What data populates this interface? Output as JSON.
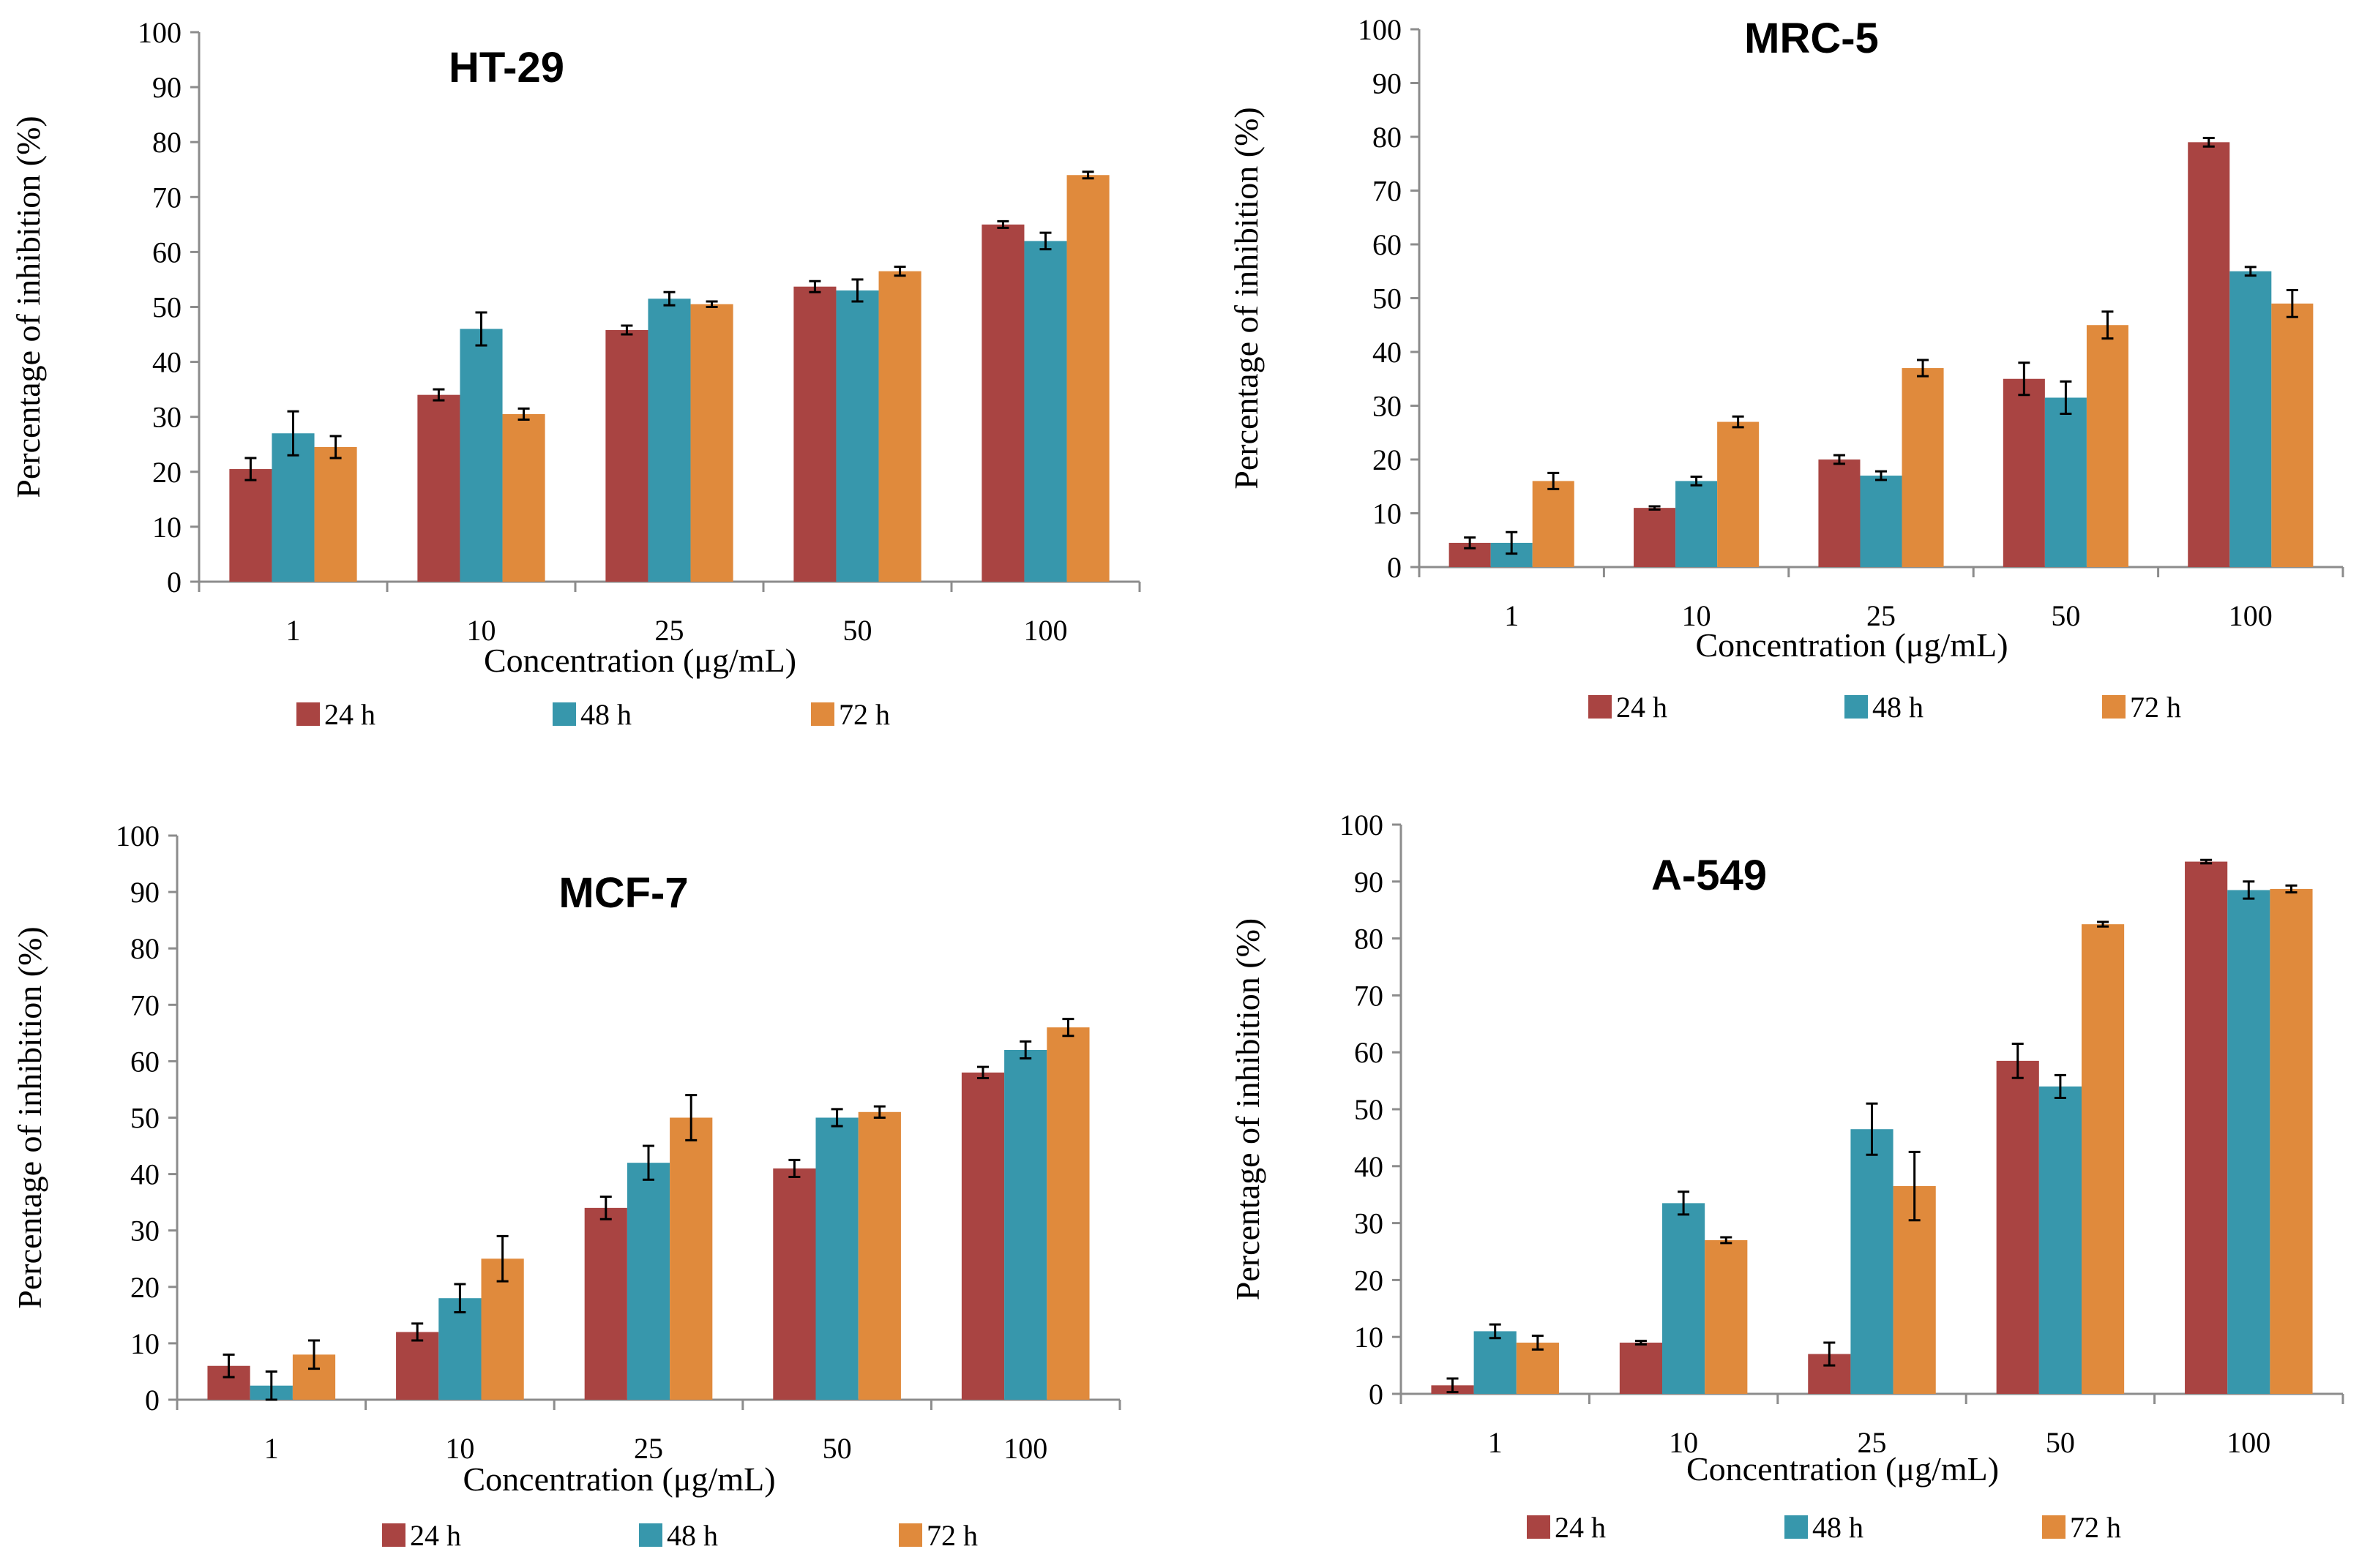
{
  "colors": {
    "series_24h": "#a94442",
    "series_48h": "#3797ac",
    "series_72h": "#e08a3c",
    "axis": "#8c8c8c"
  },
  "chart_data": [
    {
      "type": "bar",
      "title": "HT-29",
      "xlabel": "Concentration (μg/mL)",
      "ylabel": "Percentage of inhibition (%)",
      "ylim": [
        0,
        100
      ],
      "yticks": [
        "0",
        "10",
        "20",
        "30",
        "40",
        "50",
        "60",
        "70",
        "80",
        "90",
        "100"
      ],
      "categories": [
        "1",
        "10",
        "25",
        "50",
        "100"
      ],
      "legend_position": "bottom",
      "series": [
        {
          "name": "24 h",
          "values": [
            20.5,
            34,
            45.8,
            53.7,
            65
          ],
          "errors": [
            2,
            1,
            0.8,
            1,
            0.6
          ]
        },
        {
          "name": "48 h",
          "values": [
            27,
            46,
            51.5,
            53,
            62
          ],
          "errors": [
            4,
            3,
            1.2,
            2,
            1.5
          ]
        },
        {
          "name": "72 h",
          "values": [
            24.5,
            30.5,
            50.5,
            56.5,
            74
          ],
          "errors": [
            2,
            1,
            0.5,
            0.8,
            0.6
          ]
        }
      ]
    },
    {
      "type": "bar",
      "title": "MRC-5",
      "xlabel": "Concentration (μg/mL)",
      "ylabel": "Percentage of inhibition (%)",
      "ylim": [
        0,
        100
      ],
      "yticks": [
        "0",
        "10",
        "20",
        "30",
        "40",
        "50",
        "60",
        "70",
        "80",
        "90",
        "100"
      ],
      "categories": [
        "1",
        "10",
        "25",
        "50",
        "100"
      ],
      "legend_position": "bottom",
      "series": [
        {
          "name": "24 h",
          "values": [
            4.5,
            11,
            20,
            35,
            79
          ],
          "errors": [
            1,
            0.3,
            0.8,
            3,
            0.8
          ]
        },
        {
          "name": "48 h",
          "values": [
            4.5,
            16,
            17,
            31.5,
            55
          ],
          "errors": [
            2,
            0.8,
            0.8,
            3,
            0.8
          ]
        },
        {
          "name": "72 h",
          "values": [
            16,
            27,
            37,
            45,
            49
          ],
          "errors": [
            1.5,
            1,
            1.5,
            2.5,
            2.5
          ]
        }
      ]
    },
    {
      "type": "bar",
      "title": "MCF-7",
      "xlabel": "Concentration (μg/mL)",
      "ylabel": "Percentage of inhibition (%)",
      "ylim": [
        0,
        100
      ],
      "yticks": [
        "0",
        "10",
        "20",
        "30",
        "40",
        "50",
        "60",
        "70",
        "80",
        "90",
        "100"
      ],
      "categories": [
        "1",
        "10",
        "25",
        "50",
        "100"
      ],
      "legend_position": "bottom",
      "series": [
        {
          "name": "24 h",
          "values": [
            6,
            12,
            34,
            41,
            58
          ],
          "errors": [
            2,
            1.5,
            2,
            1.5,
            1
          ]
        },
        {
          "name": "48 h",
          "values": [
            2.5,
            18,
            42,
            50,
            62
          ],
          "errors": [
            2.5,
            2.5,
            3,
            1.5,
            1.5
          ]
        },
        {
          "name": "72 h",
          "values": [
            8,
            25,
            50,
            51,
            66
          ],
          "errors": [
            2.5,
            4,
            4,
            1,
            1.5
          ]
        }
      ]
    },
    {
      "type": "bar",
      "title": "A-549",
      "xlabel": "Concentration (μg/mL)",
      "ylabel": "Percentage of inhibition (%)",
      "ylim": [
        0,
        100
      ],
      "yticks": [
        "0",
        "10",
        "20",
        "30",
        "40",
        "50",
        "60",
        "70",
        "80",
        "90",
        "100"
      ],
      "categories": [
        "1",
        "10",
        "25",
        "50",
        "100"
      ],
      "legend_position": "bottom",
      "series": [
        {
          "name": "24 h",
          "values": [
            1.5,
            9,
            7,
            58.5,
            93.5
          ],
          "errors": [
            1.2,
            0.3,
            2,
            3,
            0.3
          ]
        },
        {
          "name": "48 h",
          "values": [
            11,
            33.5,
            46.5,
            54,
            88.5
          ],
          "errors": [
            1.2,
            2,
            4.5,
            2,
            1.5
          ]
        },
        {
          "name": "72 h",
          "values": [
            9,
            27,
            36.5,
            82.5,
            88.7
          ],
          "errors": [
            1.2,
            0.5,
            6,
            0.4,
            0.6
          ]
        }
      ]
    }
  ]
}
